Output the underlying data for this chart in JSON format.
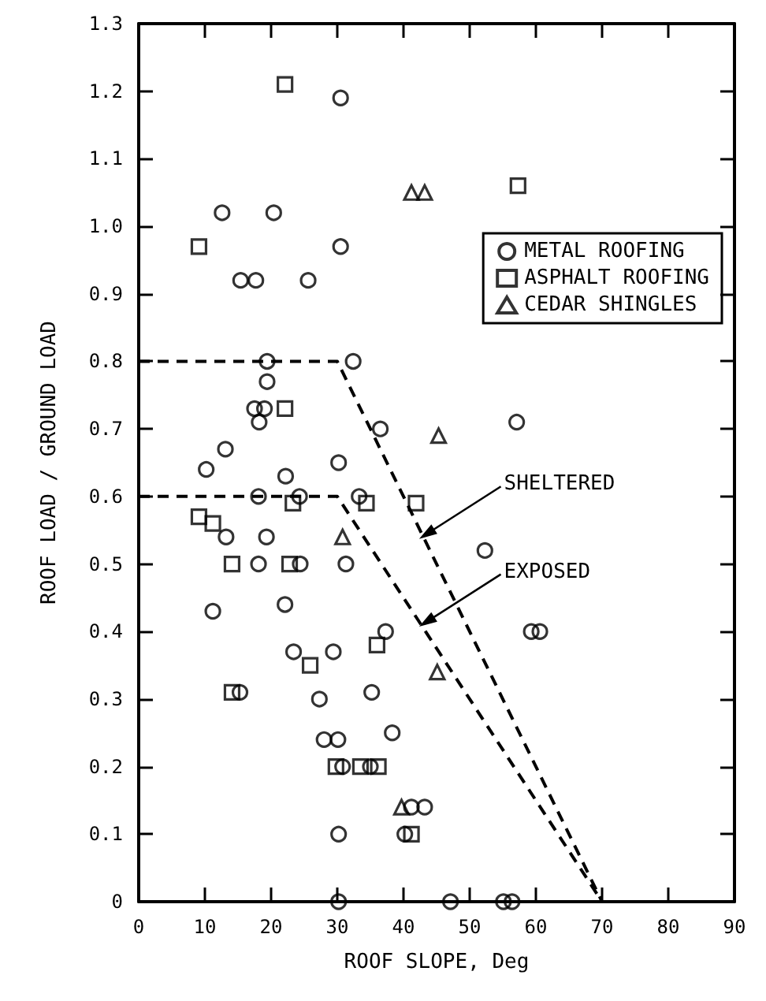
{
  "chart_data": {
    "type": "scatter",
    "xlabel": "ROOF SLOPE, Deg",
    "ylabel": "ROOF LOAD / GROUND LOAD",
    "xlim": [
      0,
      90
    ],
    "xticks": [
      0,
      10,
      20,
      30,
      40,
      50,
      60,
      70,
      80,
      90
    ],
    "ylim": [
      0,
      1.3
    ],
    "yticks": [
      0,
      0.1,
      0.2,
      0.3,
      0.4,
      0.5,
      0.6,
      0.7,
      0.8,
      0.9,
      {
        "value": 1,
        "label": "1.0"
      },
      1.1,
      1.2,
      1.3
    ],
    "grid": false,
    "legend": "right",
    "series": [
      {
        "name": "METAL ROOFING",
        "color": "#000000",
        "marker": "circle",
        "x": [
          30.5,
          12.6,
          20.4,
          30.5,
          15.4,
          17.7,
          25.6,
          19.4,
          32.4,
          19.4,
          17.5,
          19,
          18.2,
          36.5,
          57.1,
          13.1,
          10.2,
          30.2,
          22.2,
          18.1,
          24.3,
          33.3,
          13.2,
          19.3,
          18.1,
          24.4,
          31.3,
          52.3,
          11.2,
          22.1,
          37.3,
          59.3,
          60.6,
          23.4,
          29.4,
          15.3,
          27.3,
          35.2,
          28,
          30.1,
          38.3,
          30.8,
          35,
          41.2,
          43.2,
          30.2,
          40.2,
          30.2,
          47.1,
          55.1,
          56.4
        ],
        "values": [
          1.19,
          1.02,
          1.02,
          0.97,
          0.92,
          0.92,
          0.92,
          0.8,
          0.8,
          0.77,
          0.73,
          0.73,
          0.71,
          0.7,
          0.71,
          0.67,
          0.64,
          0.65,
          0.63,
          0.6,
          0.6,
          0.6,
          0.54,
          0.54,
          0.5,
          0.5,
          0.5,
          0.52,
          0.43,
          0.44,
          0.4,
          0.4,
          0.4,
          0.37,
          0.37,
          0.31,
          0.3,
          0.31,
          0.24,
          0.24,
          0.25,
          0.2,
          0.2,
          0.14,
          0.14,
          0.1,
          0.1,
          0,
          0,
          0,
          0
        ]
      },
      {
        "name": "ASPHALT ROOFING",
        "color": "#000000",
        "marker": "square",
        "x": [
          22.1,
          57.3,
          9.1,
          22.1,
          23.3,
          34.4,
          41.9,
          9.1,
          11.2,
          14.1,
          22.8,
          36,
          25.9,
          14.1,
          29.8,
          33.5,
          36.2,
          41.2
        ],
        "values": [
          1.21,
          1.06,
          0.97,
          0.73,
          0.59,
          0.59,
          0.59,
          0.57,
          0.56,
          0.5,
          0.5,
          0.38,
          0.35,
          0.31,
          0.2,
          0.2,
          0.2,
          0.1
        ]
      },
      {
        "name": "CEDAR SHINGLES",
        "color": "#000000",
        "marker": "triangle",
        "x": [
          41.2,
          43.2,
          45.3,
          30.8,
          45.1,
          39.7
        ],
        "values": [
          1.05,
          1.05,
          0.69,
          0.54,
          0.34,
          0.14
        ]
      },
      {
        "type": "line",
        "color": "#000000",
        "marker": "none",
        "line_style": "dashed",
        "x": [
          0,
          30,
          70
        ],
        "values": [
          0.8,
          0.8,
          0
        ]
      },
      {
        "type": "line",
        "color": "#000000",
        "marker": "none",
        "line_style": "dashed",
        "x": [
          0,
          30,
          70
        ],
        "values": [
          0.6,
          0.6,
          0
        ]
      }
    ],
    "annotations": [
      {
        "text": "SHELTERED",
        "x": 42.8,
        "y": 0.54
      },
      {
        "text": "EXPOSED",
        "x": 42.8,
        "y": 0.41
      }
    ]
  }
}
